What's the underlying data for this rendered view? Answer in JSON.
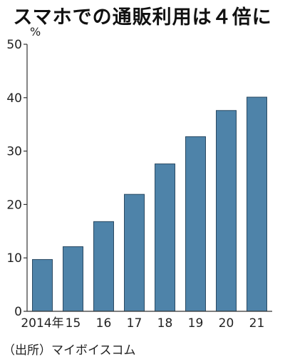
{
  "title": "スマホでの通販利用は４倍に",
  "source": "（出所）マイボイスコム",
  "colors": {
    "bar": "#4e83a9",
    "bar_stroke": "#2a4a63",
    "axis": "#333333"
  },
  "chart_data": {
    "type": "bar",
    "title": "スマホでの通販利用は４倍に",
    "ylabel": "%",
    "xlabel": "",
    "ylim": [
      0,
      50
    ],
    "yticks": [
      0,
      10,
      20,
      30,
      40,
      50
    ],
    "categories": [
      "2014年",
      "15",
      "16",
      "17",
      "18",
      "19",
      "20",
      "21"
    ],
    "values": [
      9.7,
      12.1,
      16.8,
      21.9,
      27.6,
      32.7,
      37.6,
      40.1
    ],
    "grid": false,
    "legend": "none"
  }
}
